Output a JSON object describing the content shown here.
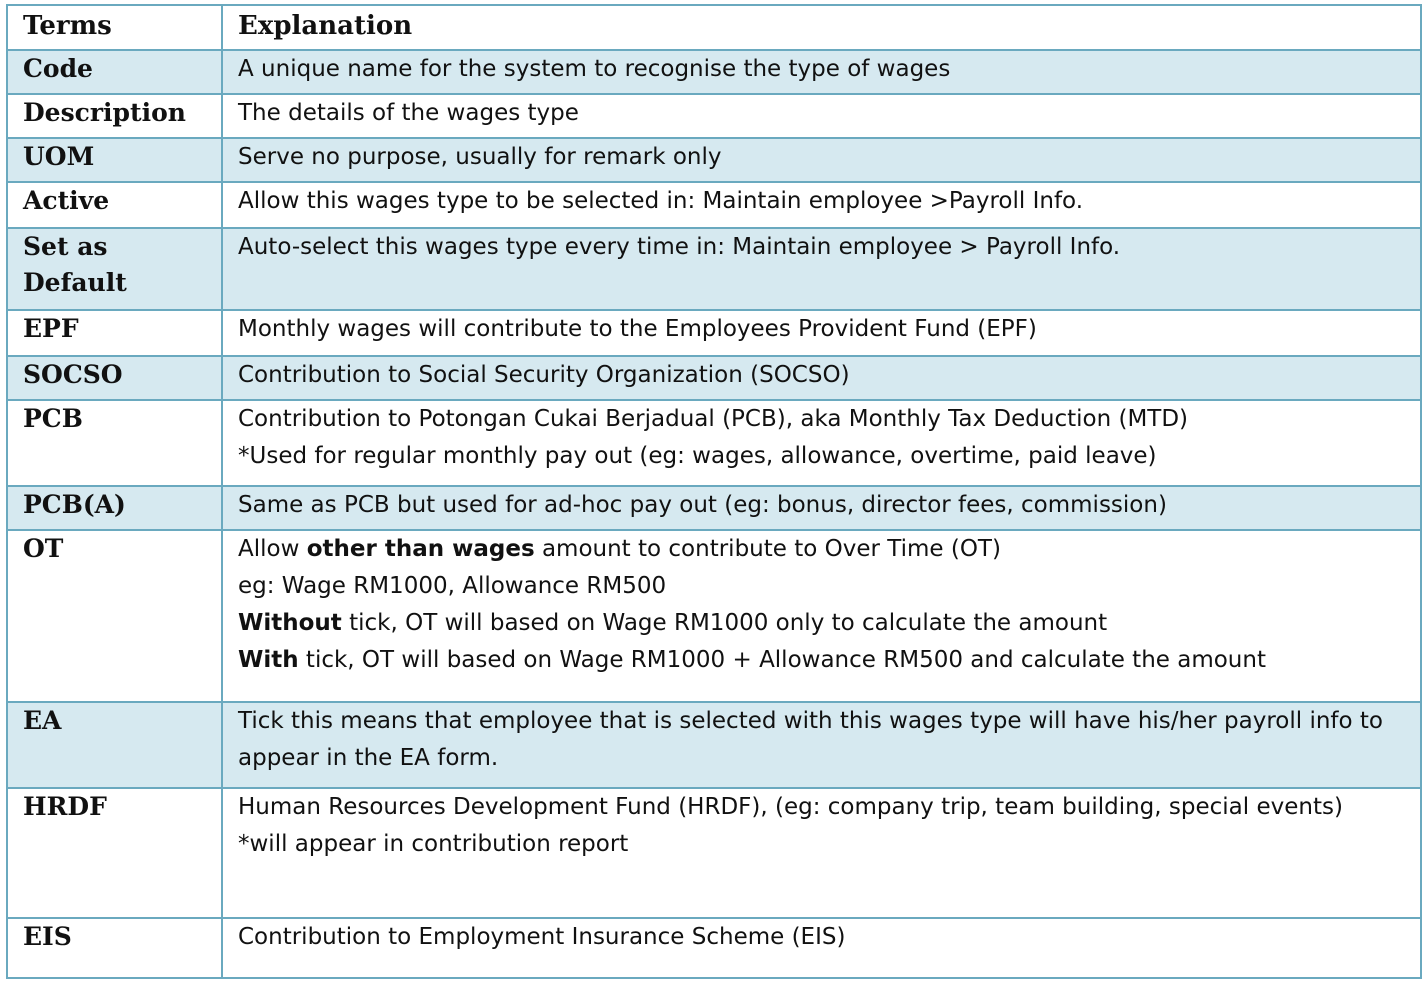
{
  "header": {
    "terms": "Terms",
    "explanation": "Explanation"
  },
  "rows": [
    {
      "term": "Code",
      "lines": [
        "A unique name for the system to recognise the type of wages"
      ]
    },
    {
      "term": "Description",
      "lines": [
        "The details of the wages type"
      ]
    },
    {
      "term": "UOM",
      "lines": [
        "Serve no purpose, usually for remark only"
      ]
    },
    {
      "term": "Active",
      "lines": [
        "Allow this wages type to be selected in: Maintain employee >Payroll Info."
      ]
    },
    {
      "term_line1": "Set as",
      "term_line2": "Default",
      "lines": [
        "Auto-select this wages type every time in: Maintain employee > Payroll Info."
      ]
    },
    {
      "term": "EPF",
      "lines": [
        "Monthly wages will contribute to the Employees Provident Fund (EPF)"
      ]
    },
    {
      "term": "SOCSO",
      "lines": [
        "Contribution to Social Security Organization (SOCSO)"
      ]
    },
    {
      "term": "PCB",
      "lines": [
        "Contribution to Potongan Cukai Berjadual (PCB), aka Monthly Tax Deduction (MTD)",
        "*Used for regular monthly pay out (eg: wages, allowance, overtime, paid leave)"
      ]
    },
    {
      "term": "PCB(A)",
      "lines": [
        "Same as PCB but used for ad-hoc pay out (eg: bonus, director fees, commission)"
      ]
    },
    {
      "term": "OT",
      "ot_l1_a": "Allow ",
      "ot_l1_b": "other than wages",
      "ot_l1_c": " amount to contribute to Over Time (OT)",
      "ot_l2": "eg: Wage RM1000, Allowance RM500",
      "ot_l3_a": "Without",
      "ot_l3_b": " tick, OT will based on Wage RM1000 only to calculate the amount",
      "ot_l4_a": "With",
      "ot_l4_b": " tick, OT will based on Wage RM1000 + Allowance RM500 and calculate the amount"
    },
    {
      "term": "EA",
      "lines": [
        "Tick this means that employee that is selected with this wages type will have his/her payroll info to appear in the EA form."
      ]
    },
    {
      "term": "HRDF",
      "lines": [
        "Human Resources Development Fund (HRDF), (eg: company trip, team building, special events)",
        "*will appear in contribution report"
      ]
    },
    {
      "term": "EIS",
      "lines": [
        "Contribution to Employment Insurance Scheme (EIS)"
      ]
    }
  ],
  "colors": {
    "border": "#6aa9bf",
    "shade": "#d6e9f0"
  }
}
